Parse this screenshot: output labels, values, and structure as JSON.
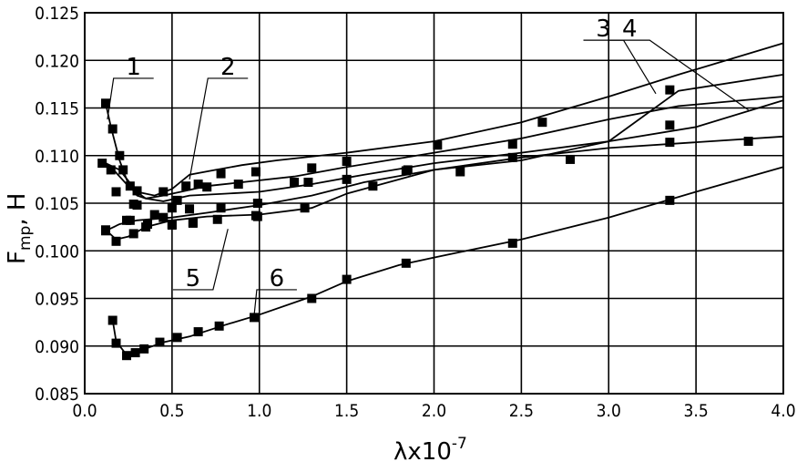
{
  "chart_data": {
    "type": "line",
    "xlabel_main": "λx10",
    "xlabel_sup": "-7",
    "ylabel_main": "F",
    "ylabel_sub": "mp",
    "ylabel_unit": ", H",
    "xlim": [
      0.0,
      4.0
    ],
    "ylim": [
      0.085,
      0.125
    ],
    "grid": true,
    "x_ticks": [
      "0.0",
      "0.5",
      "1.0",
      "1.5",
      "2.0",
      "2.5",
      "3.0",
      "3.5",
      "4.0"
    ],
    "y_ticks": [
      "0.085",
      "0.090",
      "0.095",
      "0.100",
      "0.105",
      "0.110",
      "0.115",
      "0.120",
      "0.125"
    ],
    "series": [
      {
        "name": "1",
        "label_pos": [
          0.28,
          0.1185
        ],
        "leader_end": [
          0.13,
          0.1138
        ],
        "curve": [
          [
            0.12,
            0.1155
          ],
          [
            0.15,
            0.113
          ],
          [
            0.2,
            0.1095
          ],
          [
            0.25,
            0.107
          ],
          [
            0.3,
            0.1058
          ],
          [
            0.35,
            0.1055
          ],
          [
            0.45,
            0.1058
          ],
          [
            0.55,
            0.1062
          ],
          [
            0.7,
            0.1068
          ],
          [
            0.9,
            0.1072
          ],
          [
            1.2,
            0.1078
          ],
          [
            1.5,
            0.1088
          ],
          [
            2.0,
            0.1103
          ],
          [
            2.5,
            0.1118
          ],
          [
            3.0,
            0.1138
          ],
          [
            3.4,
            0.1152
          ],
          [
            4.0,
            0.1162
          ]
        ],
        "points": [
          [
            0.12,
            0.1155
          ],
          [
            0.16,
            0.1128
          ],
          [
            0.2,
            0.11
          ],
          [
            0.22,
            0.1085
          ],
          [
            0.26,
            0.1068
          ],
          [
            0.3,
            0.1063
          ],
          [
            0.45,
            0.1062
          ],
          [
            0.53,
            0.1053
          ],
          [
            0.65,
            0.107
          ],
          [
            0.78,
            0.1081
          ],
          [
            0.98,
            0.1083
          ],
          [
            1.3,
            0.1087
          ],
          [
            1.5,
            0.1094
          ],
          [
            2.02,
            0.1111
          ],
          [
            2.62,
            0.1135
          ],
          [
            3.35,
            0.1132
          ]
        ]
      },
      {
        "name": "2",
        "label_pos": [
          0.82,
          0.1185
        ],
        "leader_end": [
          0.6,
          0.1075
        ],
        "curve": [
          [
            0.12,
            0.1092
          ],
          [
            0.2,
            0.1085
          ],
          [
            0.3,
            0.1062
          ],
          [
            0.4,
            0.1058
          ],
          [
            0.5,
            0.1065
          ],
          [
            0.6,
            0.108
          ],
          [
            0.75,
            0.1085
          ],
          [
            0.9,
            0.109
          ],
          [
            1.1,
            0.1095
          ],
          [
            1.5,
            0.1103
          ],
          [
            2.0,
            0.1115
          ],
          [
            2.5,
            0.1135
          ],
          [
            3.0,
            0.1162
          ],
          [
            3.4,
            0.1185
          ],
          [
            4.0,
            0.1218
          ]
        ],
        "points": [
          [
            0.1,
            0.1092
          ],
          [
            0.18,
            0.1062
          ],
          [
            0.3,
            0.1048
          ],
          [
            0.4,
            0.1038
          ],
          [
            0.5,
            0.1045
          ],
          [
            0.58,
            0.1068
          ],
          [
            0.7,
            0.1067
          ],
          [
            0.88,
            0.107
          ],
          [
            1.2,
            0.1072
          ],
          [
            1.28,
            0.1072
          ],
          [
            1.85,
            0.1085
          ],
          [
            2.45,
            0.1098
          ],
          [
            3.35,
            0.1114
          ],
          [
            3.8,
            0.1115
          ]
        ]
      },
      {
        "name": "3",
        "label_pos": [
          2.97,
          0.1225
        ],
        "leader_end": [
          3.27,
          0.1165
        ],
        "curve": [
          [
            0.12,
            0.1021
          ],
          [
            0.2,
            0.1028
          ],
          [
            0.3,
            0.1032
          ],
          [
            0.5,
            0.1035
          ],
          [
            0.7,
            0.104
          ],
          [
            1.0,
            0.1048
          ],
          [
            1.3,
            0.1058
          ],
          [
            1.6,
            0.1072
          ],
          [
            2.0,
            0.1085
          ],
          [
            2.5,
            0.1095
          ],
          [
            3.0,
            0.1115
          ],
          [
            3.4,
            0.1168
          ],
          [
            4.0,
            0.1185
          ]
        ],
        "points": [
          [
            0.12,
            0.1021
          ],
          [
            0.26,
            0.1032
          ],
          [
            0.36,
            0.1028
          ],
          [
            0.45,
            0.1035
          ],
          [
            0.5,
            0.1028
          ],
          [
            0.62,
            0.103
          ],
          [
            0.76,
            0.1033
          ],
          [
            0.98,
            0.1037
          ],
          [
            1.5,
            0.1075
          ],
          [
            1.84,
            0.1084
          ],
          [
            2.45,
            0.1112
          ],
          [
            3.35,
            0.1169
          ]
        ]
      },
      {
        "name": "4",
        "label_pos": [
          3.12,
          0.1225
        ],
        "leader_end": [
          3.8,
          0.1148
        ],
        "curve": [
          [
            0.1,
            0.1092
          ],
          [
            0.15,
            0.1088
          ],
          [
            0.25,
            0.1068
          ],
          [
            0.35,
            0.1055
          ],
          [
            0.45,
            0.1052
          ],
          [
            0.6,
            0.1058
          ],
          [
            0.8,
            0.106
          ],
          [
            1.0,
            0.1062
          ],
          [
            1.3,
            0.107
          ],
          [
            1.6,
            0.108
          ],
          [
            2.0,
            0.1092
          ],
          [
            2.5,
            0.1103
          ],
          [
            3.0,
            0.1115
          ],
          [
            3.5,
            0.113
          ],
          [
            4.0,
            0.1158
          ]
        ],
        "points": [
          [
            0.15,
            0.1085
          ],
          [
            0.28,
            0.1049
          ],
          [
            0.6,
            0.1044
          ],
          [
            0.78,
            0.1045
          ],
          [
            0.99,
            0.105
          ],
          [
            1.65,
            0.1068
          ],
          [
            2.15,
            0.1083
          ],
          [
            2.78,
            0.1096
          ]
        ]
      },
      {
        "name": "5",
        "label_pos": [
          0.62,
          0.0963
        ],
        "leader_end": [
          0.82,
          0.1023
        ],
        "curve": [
          [
            0.12,
            0.1022
          ],
          [
            0.18,
            0.1012
          ],
          [
            0.25,
            0.1015
          ],
          [
            0.35,
            0.1025
          ],
          [
            0.5,
            0.1032
          ],
          [
            0.7,
            0.1036
          ],
          [
            1.0,
            0.1038
          ],
          [
            1.3,
            0.1045
          ],
          [
            1.5,
            0.106
          ],
          [
            2.0,
            0.1085
          ],
          [
            2.5,
            0.1098
          ],
          [
            3.0,
            0.1108
          ],
          [
            4.0,
            0.112
          ]
        ],
        "points": [
          [
            0.12,
            0.1022
          ],
          [
            0.18,
            0.101
          ],
          [
            0.24,
            0.1032
          ],
          [
            0.28,
            0.1018
          ],
          [
            0.35,
            0.1025
          ],
          [
            0.5,
            0.1027
          ],
          [
            0.62,
            0.1029
          ],
          [
            0.99,
            0.1036
          ],
          [
            1.26,
            0.1045
          ]
        ]
      },
      {
        "name": "6",
        "label_pos": [
          1.1,
          0.0963
        ],
        "leader_end": [
          0.97,
          0.0932
        ],
        "curve": [
          [
            0.16,
            0.0927
          ],
          [
            0.18,
            0.0905
          ],
          [
            0.23,
            0.0893
          ],
          [
            0.3,
            0.0894
          ],
          [
            0.45,
            0.0904
          ],
          [
            0.6,
            0.091
          ],
          [
            0.8,
            0.0922
          ],
          [
            1.0,
            0.0933
          ],
          [
            1.3,
            0.0952
          ],
          [
            1.5,
            0.0968
          ],
          [
            1.8,
            0.0985
          ],
          [
            2.0,
            0.0993
          ],
          [
            2.5,
            0.1012
          ],
          [
            3.0,
            0.1035
          ],
          [
            3.5,
            0.1062
          ],
          [
            4.0,
            0.1088
          ]
        ],
        "points": [
          [
            0.16,
            0.0927
          ],
          [
            0.18,
            0.0903
          ],
          [
            0.24,
            0.089
          ],
          [
            0.29,
            0.0893
          ],
          [
            0.34,
            0.0897
          ],
          [
            0.43,
            0.0904
          ],
          [
            0.53,
            0.0909
          ],
          [
            0.65,
            0.0915
          ],
          [
            0.77,
            0.0921
          ],
          [
            0.97,
            0.093
          ],
          [
            1.3,
            0.095
          ],
          [
            1.5,
            0.097
          ],
          [
            1.84,
            0.0987
          ],
          [
            2.45,
            0.1008
          ],
          [
            3.35,
            0.1053
          ]
        ]
      }
    ]
  }
}
